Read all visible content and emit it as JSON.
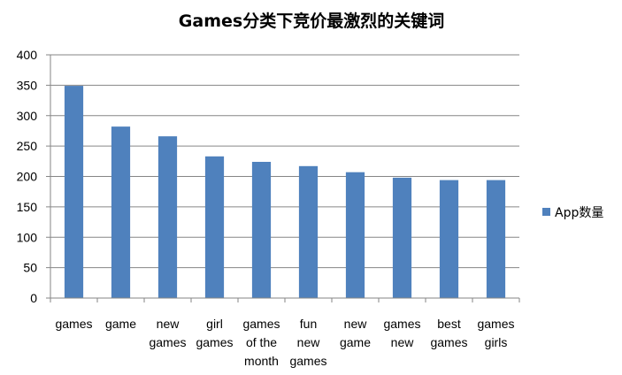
{
  "chart_data": {
    "type": "bar",
    "title": "Games分类下竞价最激烈的关键词",
    "xlabel": "",
    "ylabel": "",
    "categories": [
      [
        "games"
      ],
      [
        "game"
      ],
      [
        "new",
        "games"
      ],
      [
        "girl",
        "games"
      ],
      [
        "games",
        "of the",
        "month"
      ],
      [
        "fun",
        "new",
        "games"
      ],
      [
        "new",
        "game"
      ],
      [
        "games",
        "new"
      ],
      [
        "best",
        "games"
      ],
      [
        "games",
        "girls"
      ]
    ],
    "series": [
      {
        "name": "App数量",
        "values": [
          349,
          282,
          266,
          233,
          224,
          217,
          207,
          198,
          194,
          194
        ]
      }
    ],
    "ylim": [
      0,
      400
    ],
    "yticks": [
      0,
      50,
      100,
      150,
      200,
      250,
      300,
      350,
      400
    ],
    "grid": true,
    "legend": "right",
    "colors": {
      "bar": "#4F81BD",
      "grid": "#868686",
      "axis": "#868686"
    }
  }
}
